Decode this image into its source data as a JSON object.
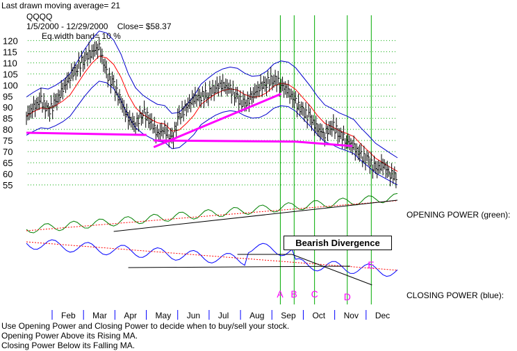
{
  "header": {
    "line1": "Last drawn moving average= 21",
    "line2": "QQQQ",
    "line3": "1/5/2000 - 12/29/2000    Close= $58.37",
    "line4": "Eq.width band= 10 %"
  },
  "labels": {
    "opening_power": "OPENING POWER (green):",
    "closing_power": "CLOSING POWER (blue):",
    "divergence": "Bearish Divergence"
  },
  "footer": [
    "Use Opening Power and Closing Power to decide when to buy/sell your stock.",
    "Opening Power Above its Rising MA.",
    "Closing Power Below its Falling MA."
  ],
  "colors": {
    "price": "#000000",
    "ma": "#ff0000",
    "band": "#0000cc",
    "trendline": "#ff00ff",
    "opening_power": "#008000",
    "closing_power": "#0000ff",
    "grid": "#00aa00",
    "markers": "#ff00ff",
    "event_line": "#00aa00"
  },
  "chart_data": {
    "type": "line",
    "title": "QQQQ",
    "subtitle": "1/5/2000 - 12/29/2000    Close= $58.37",
    "ylim": [
      50,
      122
    ],
    "yticks": [
      "120",
      "115",
      "110",
      "105",
      "100",
      "95",
      "90",
      "85",
      "80",
      "75",
      "70",
      "65",
      "60",
      "55"
    ],
    "months": [
      "Feb",
      "Mar",
      "Apr",
      "May",
      "Jun",
      "Jul",
      "Aug",
      "Sep",
      "Oct",
      "Nov",
      "Dec"
    ],
    "grid": true,
    "price_series": {
      "week": [
        0,
        1,
        2,
        3,
        4,
        5,
        6,
        7,
        8,
        9,
        10,
        11,
        12,
        13,
        14,
        15,
        16,
        17,
        18,
        19,
        20,
        21,
        22,
        23,
        24,
        25,
        26,
        27,
        28,
        29,
        30,
        31,
        32,
        33,
        34,
        35,
        36,
        37,
        38,
        39,
        40,
        41,
        42,
        43,
        44,
        45,
        46,
        47,
        48,
        49,
        50,
        51
      ],
      "close": [
        86,
        90,
        93,
        88,
        92,
        98,
        104,
        108,
        112,
        115,
        117,
        105,
        100,
        92,
        85,
        82,
        88,
        84,
        78,
        80,
        75,
        86,
        90,
        94,
        95,
        96,
        99,
        100,
        98,
        94,
        91,
        95,
        99,
        101,
        103,
        100,
        97,
        92,
        88,
        85,
        80,
        78,
        82,
        78,
        75,
        72,
        68,
        66,
        62,
        64,
        60,
        58.37
      ]
    },
    "marker_weeks": {
      "A": 34.9,
      "B": 36.8,
      "C": 39.6,
      "D": 44.1,
      "E": 47.4
    },
    "divergence_labels": [
      "A",
      "B",
      "C",
      "D",
      "E"
    ]
  }
}
